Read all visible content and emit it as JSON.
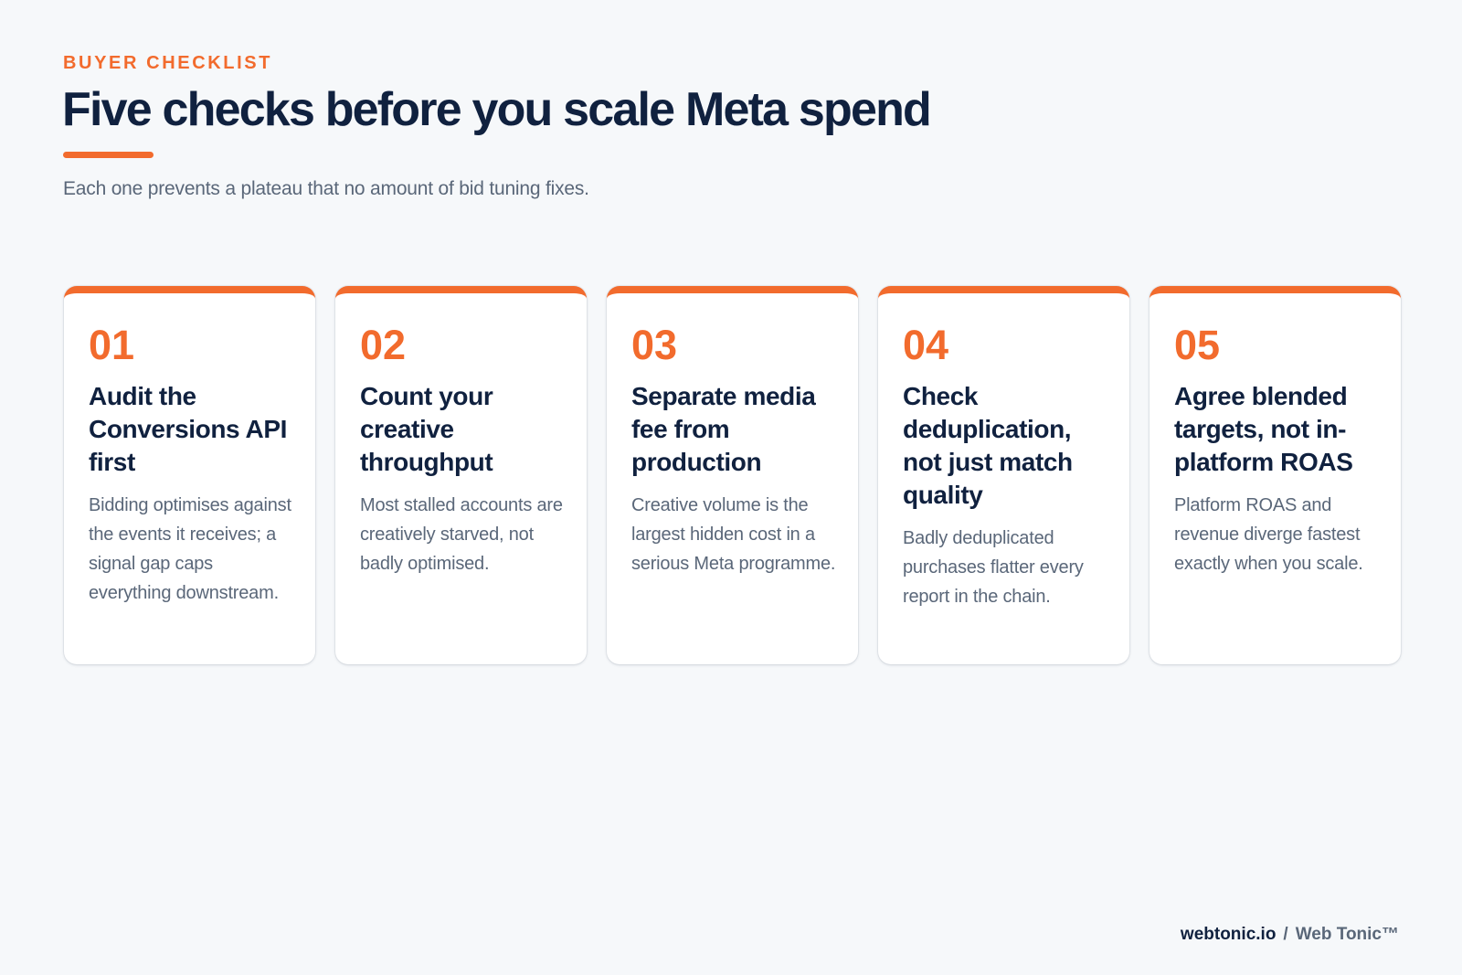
{
  "header": {
    "eyebrow": "BUYER CHECKLIST",
    "title": "Five checks before you scale Meta spend",
    "subtitle": "Each one prevents a plateau that no amount of bid tuning fixes."
  },
  "cards": [
    {
      "number": "01",
      "title": "Audit the Conversions API first",
      "body": "Bidding optimises against the events it receives; a signal gap caps everything downstream."
    },
    {
      "number": "02",
      "title": "Count your creative throughput",
      "body": "Most stalled accounts are creatively starved, not badly optimised."
    },
    {
      "number": "03",
      "title": "Separate media fee from production",
      "body": "Creative volume is the largest hidden cost in a serious Meta programme."
    },
    {
      "number": "04",
      "title": "Check deduplication, not just match quality",
      "body": "Badly deduplicated purchases flatter every report in the chain."
    },
    {
      "number": "05",
      "title": "Agree blended targets, not in-platform ROAS",
      "body": "Platform ROAS and revenue diverge fastest exactly when you scale."
    }
  ],
  "footer": {
    "domain": "webtonic.io",
    "separator": "/",
    "brand": "Web Tonic™"
  },
  "colors": {
    "accent": "#f26b2d",
    "heading": "#10213f",
    "muted": "#5a6779",
    "background": "#f6f8fa",
    "card": "#ffffff"
  }
}
